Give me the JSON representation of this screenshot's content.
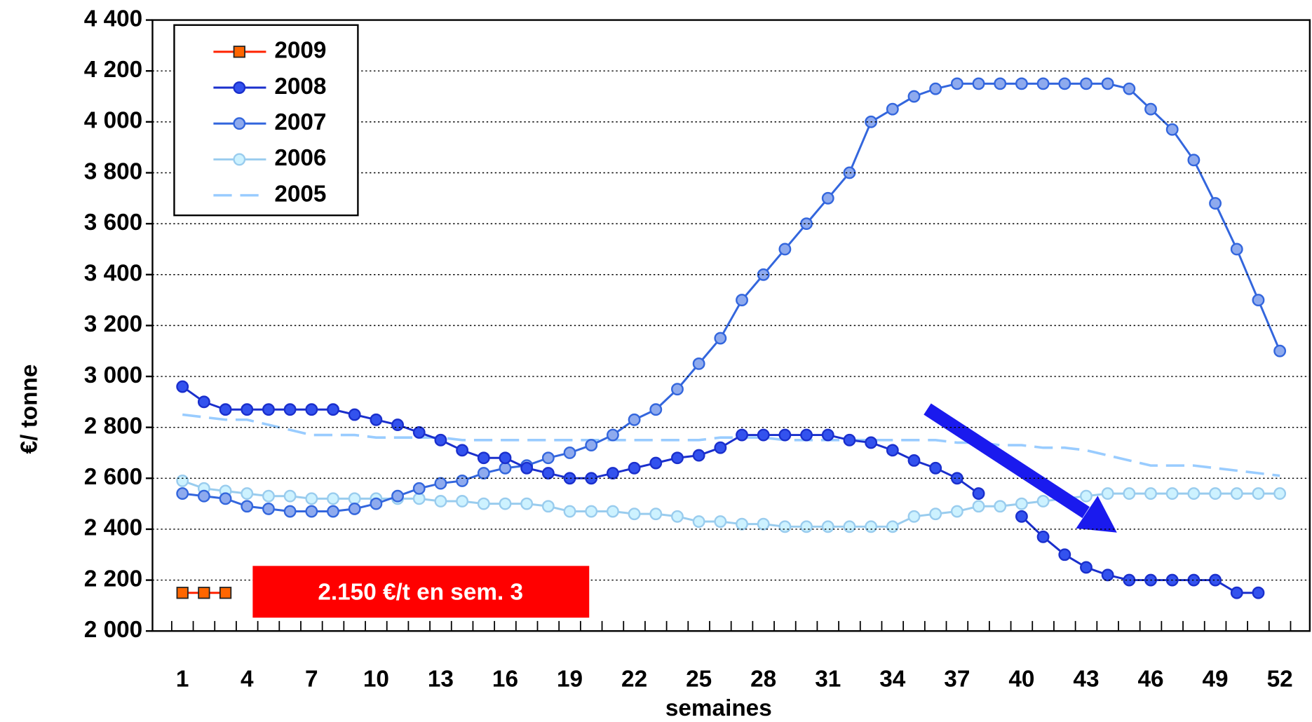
{
  "chart_data": {
    "type": "line",
    "y_label": "€/ tonne",
    "x_label": "semaines",
    "annotation": "2.150 €/t en sem. 3",
    "annotation_color": "#ff0000",
    "categories": [
      1,
      null,
      null,
      4,
      null,
      null,
      7,
      null,
      null,
      10,
      null,
      null,
      13,
      null,
      null,
      16,
      null,
      null,
      19,
      null,
      null,
      22,
      null,
      null,
      25,
      null,
      null,
      28,
      null,
      null,
      31,
      null,
      null,
      34,
      null,
      null,
      37,
      null,
      null,
      40,
      null,
      null,
      43,
      null,
      null,
      46,
      null,
      null,
      49,
      null,
      null,
      52
    ],
    "ylim": [
      2000,
      4400
    ],
    "yticks": [
      {
        "value": 2000,
        "label": "2 000"
      },
      {
        "value": 2200,
        "label": "2 200"
      },
      {
        "value": 2400,
        "label": "2 400"
      },
      {
        "value": 2600,
        "label": "2 600"
      },
      {
        "value": 2800,
        "label": "2 800"
      },
      {
        "value": 3000,
        "label": "3 000"
      },
      {
        "value": 3200,
        "label": "3 200"
      },
      {
        "value": 3400,
        "label": "3 400"
      },
      {
        "value": 3600,
        "label": "3 600"
      },
      {
        "value": 3800,
        "label": "3 800"
      },
      {
        "value": 4000,
        "label": "4 000"
      },
      {
        "value": 4200,
        "label": "4 200"
      },
      {
        "value": 4400,
        "label": "4 400"
      }
    ],
    "grid": true,
    "legend": "upper left",
    "series": [
      {
        "name": "2009",
        "color": "#ff2200",
        "marker": "square",
        "marker_color": "#ff6600",
        "dash": false,
        "values": [
          2150,
          2150,
          2150,
          null,
          null,
          null,
          null,
          null,
          null,
          null,
          null,
          null,
          null,
          null,
          null,
          null,
          null,
          null,
          null,
          null,
          null,
          null,
          null,
          null,
          null,
          null,
          null,
          null,
          null,
          null,
          null,
          null,
          null,
          null,
          null,
          null,
          null,
          null,
          null,
          null,
          null,
          null,
          null,
          null,
          null,
          null,
          null,
          null,
          null,
          null,
          null,
          null
        ]
      },
      {
        "name": "2008",
        "color": "#1a2fcc",
        "marker": "circle",
        "marker_color": "#3352ee",
        "dash": false,
        "values": [
          2960,
          2900,
          2870,
          2870,
          2870,
          2870,
          2870,
          2870,
          2850,
          2830,
          2810,
          2780,
          2750,
          2710,
          2680,
          2680,
          2640,
          2620,
          2600,
          2600,
          2620,
          2640,
          2660,
          2680,
          2690,
          2720,
          2770,
          2770,
          2770,
          2770,
          2770,
          2750,
          2740,
          2710,
          2670,
          2640,
          2600,
          2540,
          null,
          2450,
          2370,
          2300,
          2250,
          2220,
          2200,
          2200,
          2200,
          2200,
          2200,
          2150,
          2150,
          null
        ]
      },
      {
        "name": "2007",
        "color": "#3366dd",
        "marker": "circle",
        "marker_color": "#8eaaee",
        "dash": false,
        "values": [
          2540,
          2530,
          2520,
          2490,
          2480,
          2470,
          2470,
          2470,
          2480,
          2500,
          2530,
          2560,
          2580,
          2590,
          2620,
          2640,
          2650,
          2680,
          2700,
          2730,
          2770,
          2830,
          2870,
          2950,
          3050,
          3150,
          3300,
          3400,
          3500,
          3600,
          3700,
          3800,
          4000,
          4050,
          4100,
          4130,
          4150,
          4150,
          4150,
          4150,
          4150,
          4150,
          4150,
          4150,
          4130,
          4050,
          3970,
          3850,
          3680,
          3500,
          3300,
          3100
        ]
      },
      {
        "name": "2006",
        "color": "#99ccee",
        "marker": "circle",
        "marker_color": "#cdf2ff",
        "dash": false,
        "values": [
          2590,
          2560,
          2550,
          2540,
          2530,
          2530,
          2520,
          2520,
          2520,
          2520,
          2520,
          2520,
          2510,
          2510,
          2500,
          2500,
          2500,
          2490,
          2470,
          2470,
          2470,
          2460,
          2460,
          2450,
          2430,
          2430,
          2420,
          2420,
          2410,
          2410,
          2410,
          2410,
          2410,
          2410,
          2450,
          2460,
          2470,
          2490,
          2490,
          2500,
          2510,
          2520,
          2530,
          2540,
          2540,
          2540,
          2540,
          2540,
          2540,
          2540,
          2540,
          2540
        ]
      },
      {
        "name": "2005",
        "color": "#99ccff",
        "marker": "none",
        "dash": true,
        "values": [
          2850,
          2840,
          2830,
          2830,
          2810,
          2790,
          2770,
          2770,
          2770,
          2760,
          2760,
          2760,
          2760,
          2750,
          2750,
          2750,
          2750,
          2750,
          2750,
          2750,
          2750,
          2750,
          2750,
          2750,
          2750,
          2760,
          2760,
          2760,
          2750,
          2750,
          2750,
          2750,
          2750,
          2750,
          2750,
          2750,
          2740,
          2740,
          2730,
          2730,
          2720,
          2720,
          2710,
          2690,
          2670,
          2650,
          2650,
          2650,
          2640,
          2630,
          2620,
          2610
        ]
      }
    ]
  }
}
